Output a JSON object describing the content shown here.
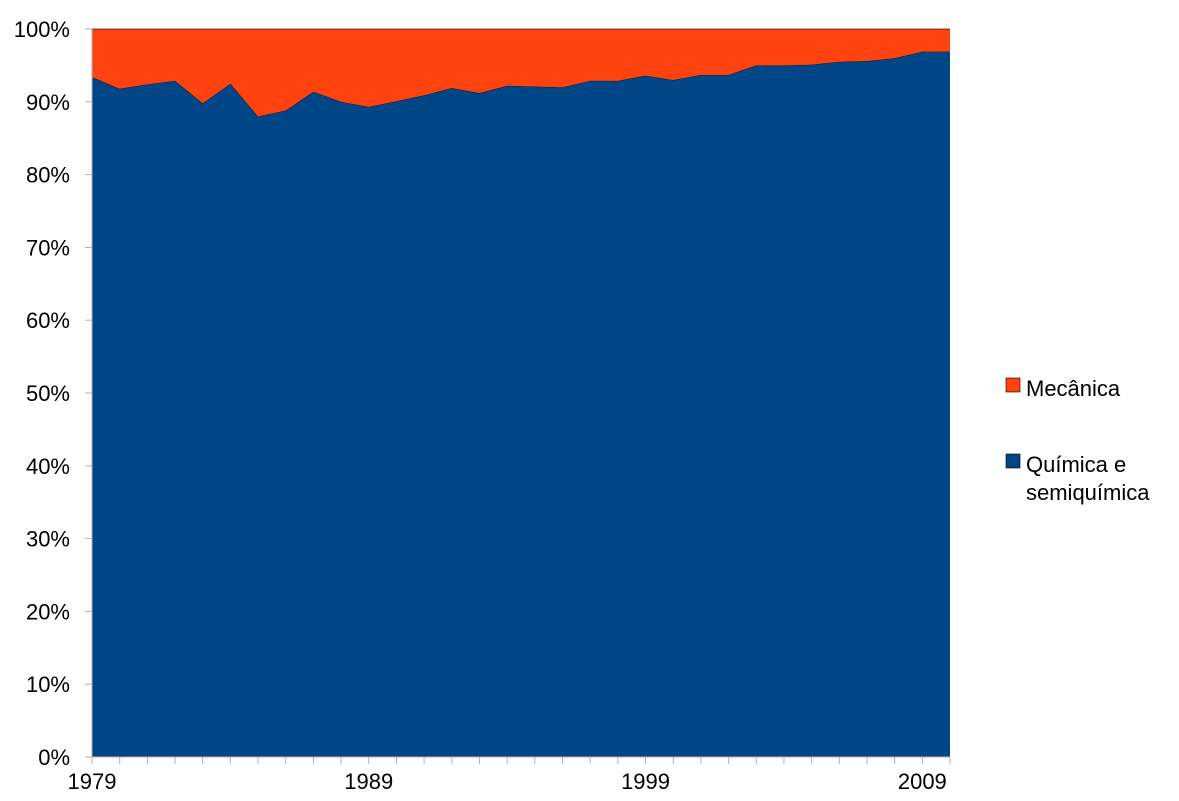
{
  "chart_data": {
    "type": "area",
    "stacked_percent": true,
    "x": [
      1979,
      1980,
      1981,
      1982,
      1983,
      1984,
      1985,
      1986,
      1987,
      1988,
      1989,
      1990,
      1991,
      1992,
      1993,
      1994,
      1995,
      1996,
      1997,
      1998,
      1999,
      2000,
      2001,
      2002,
      2003,
      2004,
      2005,
      2006,
      2007,
      2008,
      2009,
      2010
    ],
    "x_tick_labels": [
      "1979",
      "1989",
      "1999",
      "2009"
    ],
    "x_tick_values": [
      1979,
      1989,
      1999,
      2009
    ],
    "y_tick_labels": [
      "0%",
      "10%",
      "20%",
      "30%",
      "40%",
      "50%",
      "60%",
      "70%",
      "80%",
      "90%",
      "100%"
    ],
    "ylim": [
      0,
      100
    ],
    "series": [
      {
        "name": "Química e semiquímica",
        "color": "#004586",
        "values": [
          93.4,
          91.8,
          92.4,
          92.9,
          89.8,
          92.5,
          88.0,
          88.8,
          91.4,
          90.0,
          89.3,
          90.1,
          90.9,
          91.9,
          91.2,
          92.2,
          92.1,
          92.0,
          92.9,
          92.9,
          93.6,
          93.0,
          93.7,
          93.7,
          95.0,
          95.0,
          95.1,
          95.5,
          95.6,
          96.0,
          96.9,
          96.9
        ]
      },
      {
        "name": "Mecânica",
        "color": "#ff420e",
        "values": [
          6.6,
          8.2,
          7.6,
          7.1,
          10.2,
          7.5,
          12.0,
          11.2,
          8.6,
          10.0,
          10.7,
          9.9,
          9.1,
          8.1,
          8.8,
          7.8,
          7.9,
          8.0,
          7.1,
          7.1,
          6.4,
          7.0,
          6.3,
          6.3,
          5.0,
          5.0,
          4.9,
          4.5,
          4.4,
          4.0,
          3.1,
          3.1
        ]
      }
    ],
    "legend": {
      "position": "right",
      "entries": [
        {
          "lines": [
            "Mecânica"
          ],
          "color": "#ff420e"
        },
        {
          "lines": [
            "Química e",
            "semiquímica"
          ],
          "color": "#004586"
        }
      ]
    },
    "grid": false
  }
}
